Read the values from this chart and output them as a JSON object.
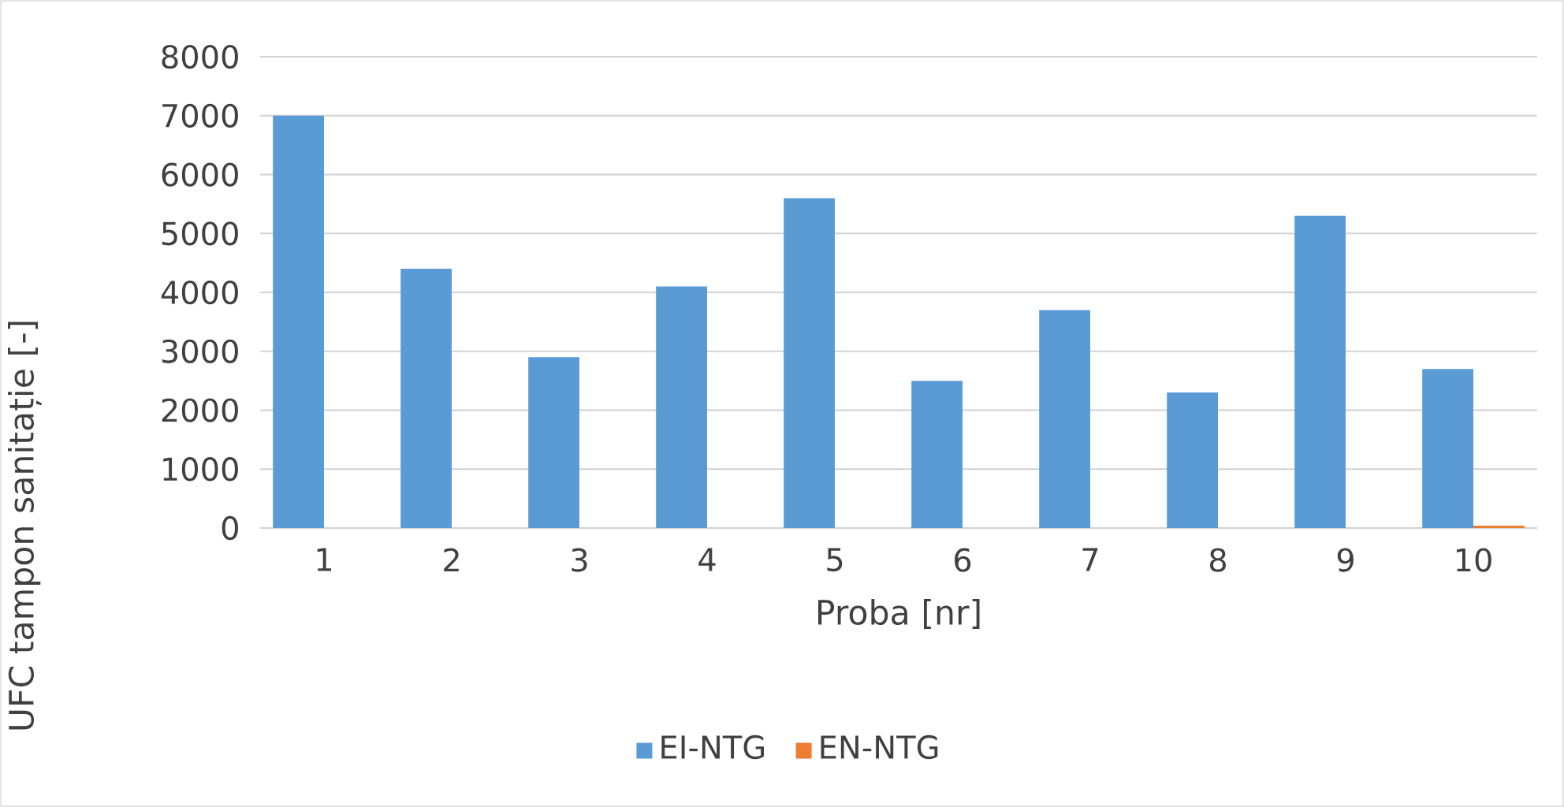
{
  "chart_data": {
    "type": "bar",
    "xlabel": "Proba [nr]",
    "ylabel": "UFC tampon sanitație [-]",
    "categories": [
      "1",
      "2",
      "3",
      "4",
      "5",
      "6",
      "7",
      "8",
      "9",
      "10"
    ],
    "series": [
      {
        "name": "EI-NTG",
        "color": "#5b9bd5",
        "values": [
          7000,
          4400,
          2900,
          4100,
          5600,
          2500,
          3700,
          2300,
          5300,
          2700
        ]
      },
      {
        "name": "EN-NTG",
        "color": "#ed7d31",
        "values": [
          0,
          0,
          0,
          0,
          0,
          0,
          0,
          0,
          0,
          40
        ]
      }
    ],
    "ylim": [
      0,
      8000
    ],
    "yticks": [
      0,
      1000,
      2000,
      3000,
      4000,
      5000,
      6000,
      7000,
      8000
    ],
    "grid": "y",
    "legend": "bottom"
  }
}
